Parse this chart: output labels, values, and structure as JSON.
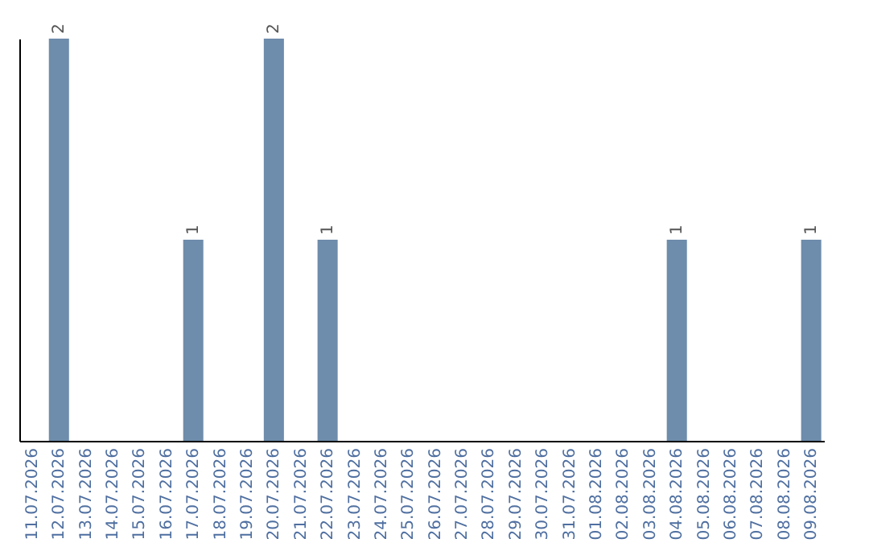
{
  "chart_data": {
    "type": "bar",
    "categories": [
      "11.07.2026",
      "12.07.2026",
      "13.07.2026",
      "14.07.2026",
      "15.07.2026",
      "16.07.2026",
      "17.07.2026",
      "18.07.2026",
      "19.07.2026",
      "20.07.2026",
      "21.07.2026",
      "22.07.2026",
      "23.07.2026",
      "24.07.2026",
      "25.07.2026",
      "26.07.2026",
      "27.07.2026",
      "28.07.2026",
      "29.07.2026",
      "30.07.2026",
      "31.07.2026",
      "01.08.2026",
      "02.08.2026",
      "03.08.2026",
      "04.08.2026",
      "05.08.2026",
      "06.08.2026",
      "07.08.2026",
      "08.08.2026",
      "09.08.2026"
    ],
    "values": [
      0,
      2,
      0,
      0,
      0,
      0,
      1,
      0,
      0,
      2,
      0,
      1,
      0,
      0,
      0,
      0,
      0,
      0,
      0,
      0,
      0,
      0,
      0,
      0,
      1,
      0,
      0,
      0,
      0,
      1
    ],
    "color": "#6e8cab",
    "value_labels": [
      null,
      "2",
      null,
      null,
      null,
      null,
      "1",
      null,
      null,
      "2",
      null,
      "1",
      null,
      null,
      null,
      null,
      null,
      null,
      null,
      null,
      null,
      null,
      null,
      null,
      "1",
      null,
      null,
      null,
      null,
      "1"
    ],
    "tick_labels": "x",
    "grid": false
  }
}
